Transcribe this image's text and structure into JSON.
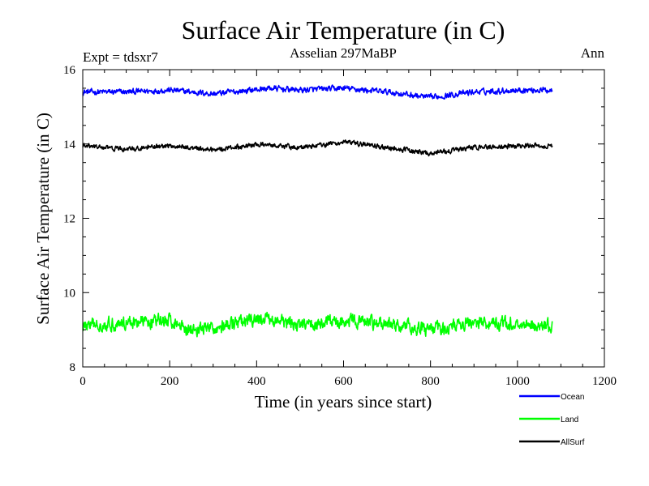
{
  "chart_data": {
    "type": "line",
    "title": "Surface Air Temperature (in C)",
    "subtitle_left": "Expt = tdsxr7",
    "subtitle_center": "Asselian 297MaBP",
    "subtitle_right": "Ann",
    "xlabel": "Time (in years since start)",
    "ylabel": "Surface Air Temperature (in C)",
    "xlim": [
      0,
      1200
    ],
    "ylim": [
      8,
      16
    ],
    "xticks": [
      0,
      200,
      400,
      600,
      800,
      1000,
      1200
    ],
    "yticks": [
      8,
      10,
      12,
      14,
      16
    ],
    "x_range_data": [
      0,
      1080
    ],
    "series": [
      {
        "name": "Ocean",
        "color": "#0000ff",
        "mean": 15.4,
        "amplitude": 0.12,
        "keypoints": [
          [
            0,
            15.4
          ],
          [
            100,
            15.4
          ],
          [
            200,
            15.45
          ],
          [
            300,
            15.35
          ],
          [
            430,
            15.5
          ],
          [
            500,
            15.45
          ],
          [
            600,
            15.5
          ],
          [
            700,
            15.4
          ],
          [
            800,
            15.25
          ],
          [
            900,
            15.4
          ],
          [
            1000,
            15.45
          ],
          [
            1080,
            15.45
          ]
        ]
      },
      {
        "name": "Land",
        "color": "#00ff00",
        "mean": 9.15,
        "amplitude": 0.28,
        "keypoints": [
          [
            0,
            9.1
          ],
          [
            100,
            9.2
          ],
          [
            200,
            9.25
          ],
          [
            250,
            9.0
          ],
          [
            300,
            9.05
          ],
          [
            420,
            9.3
          ],
          [
            500,
            9.1
          ],
          [
            600,
            9.25
          ],
          [
            700,
            9.15
          ],
          [
            800,
            9.0
          ],
          [
            900,
            9.2
          ],
          [
            1000,
            9.15
          ],
          [
            1080,
            9.1
          ]
        ]
      },
      {
        "name": "AllSurf",
        "color": "#000000",
        "mean": 13.9,
        "amplitude": 0.1,
        "keypoints": [
          [
            0,
            13.95
          ],
          [
            100,
            13.85
          ],
          [
            200,
            13.95
          ],
          [
            300,
            13.85
          ],
          [
            420,
            14.0
          ],
          [
            500,
            13.9
          ],
          [
            600,
            14.05
          ],
          [
            700,
            13.9
          ],
          [
            800,
            13.75
          ],
          [
            900,
            13.9
          ],
          [
            1000,
            13.95
          ],
          [
            1080,
            13.95
          ]
        ]
      }
    ],
    "legend": {
      "position": "bottom-right",
      "entries": [
        {
          "label": "Ocean",
          "color": "#0000ff"
        },
        {
          "label": "Land",
          "color": "#00ff00"
        },
        {
          "label": "AllSurf",
          "color": "#000000"
        }
      ]
    }
  }
}
